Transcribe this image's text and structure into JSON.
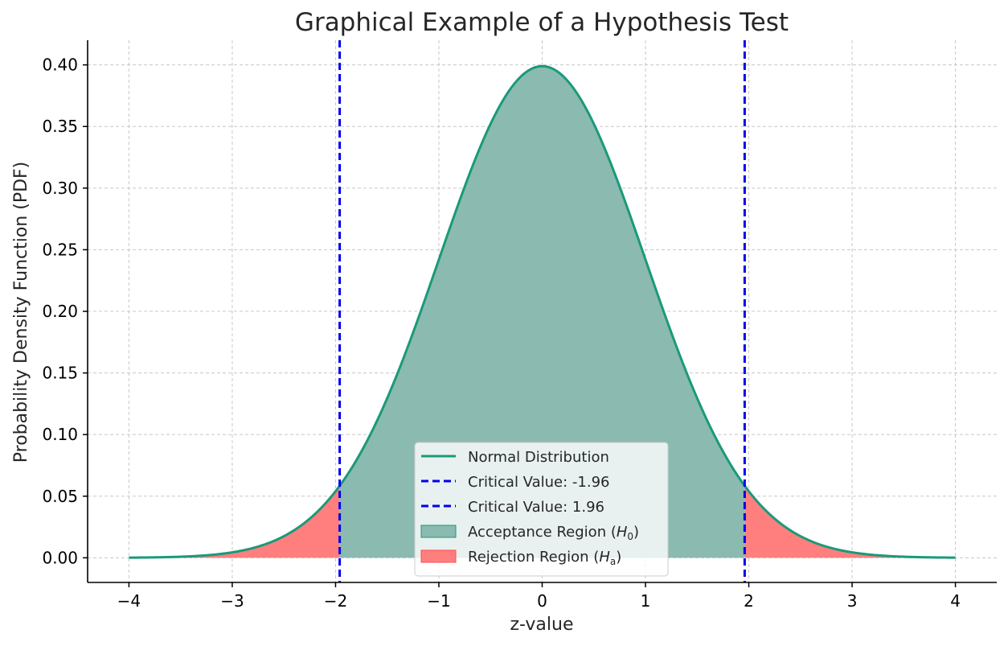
{
  "chart_data": {
    "type": "area",
    "title": "Graphical Example of a Hypothesis Test",
    "xlabel": "z-value",
    "ylabel": "Probability Density Function (PDF)",
    "xlim": [
      -4.4,
      4.4
    ],
    "ylim": [
      -0.02,
      0.42
    ],
    "x_ticks": [
      -4,
      -3,
      -2,
      -1,
      0,
      1,
      2,
      3,
      4
    ],
    "x_tick_labels": [
      "−4",
      "−3",
      "−2",
      "−1",
      "0",
      "1",
      "2",
      "3",
      "4"
    ],
    "y_ticks": [
      0.0,
      0.05,
      0.1,
      0.15,
      0.2,
      0.25,
      0.3,
      0.35,
      0.4
    ],
    "y_tick_labels": [
      "0.00",
      "0.05",
      "0.10",
      "0.15",
      "0.20",
      "0.25",
      "0.30",
      "0.35",
      "0.40"
    ],
    "grid": true,
    "legend_position": "bottom-center",
    "colors": {
      "curve": "#1a9a78",
      "acceptance_fill": "#8bbab1",
      "rejection_fill": "#ff7f7f",
      "critical_line": "#0000ee",
      "grid": "#c8c8c8"
    },
    "curve": {
      "name": "Normal Distribution",
      "x": [
        -4.0,
        -3.5,
        -3.0,
        -2.5,
        -2.0,
        -1.96,
        -1.5,
        -1.0,
        -0.5,
        0.0,
        0.5,
        1.0,
        1.5,
        1.96,
        2.0,
        2.5,
        3.0,
        3.5,
        4.0
      ],
      "y": [
        0.0001,
        0.0009,
        0.0044,
        0.0175,
        0.054,
        0.0584,
        0.1295,
        0.242,
        0.3521,
        0.3989,
        0.3521,
        0.242,
        0.1295,
        0.0584,
        0.054,
        0.0175,
        0.0044,
        0.0009,
        0.0001
      ]
    },
    "critical_values": [
      {
        "name": "Critical Value: -1.96",
        "x": -1.96
      },
      {
        "name": "Critical Value: 1.96",
        "x": 1.96
      }
    ],
    "regions": [
      {
        "name": "Acceptance Region",
        "label_main": "Acceptance Region (",
        "label_var": "H",
        "label_sub": "0",
        "label_end": ")",
        "from": -1.96,
        "to": 1.96
      },
      {
        "name": "Rejection Region",
        "label_main": "Rejection Region (",
        "label_var": "H",
        "label_sub": "a",
        "label_end": ")",
        "intervals": [
          [
            -4.0,
            -1.96
          ],
          [
            1.96,
            4.0
          ]
        ]
      }
    ]
  }
}
